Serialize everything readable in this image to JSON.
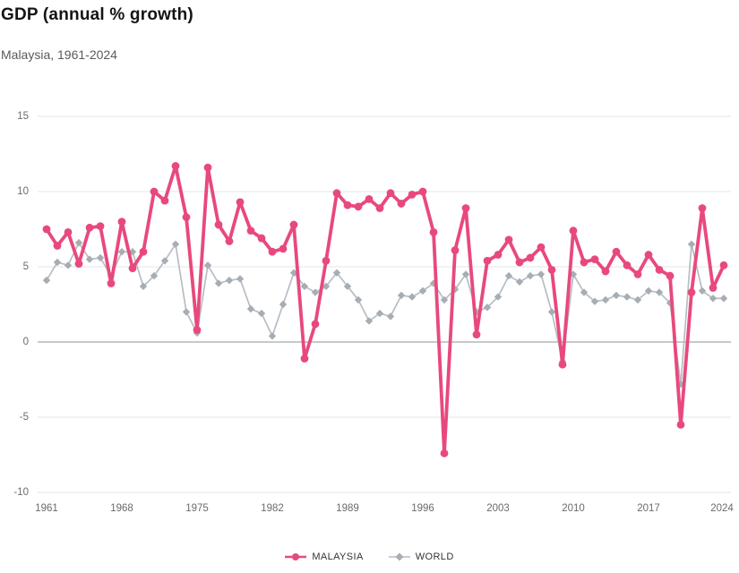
{
  "header": {
    "title": "GDP (annual % growth)",
    "subtitle": "Malaysia, 1961-2024"
  },
  "legend": [
    {
      "label": "MALAYSIA",
      "color": "#e8497d",
      "marker": "circle"
    },
    {
      "label": "WORLD",
      "color": "#a6adb5",
      "marker": "diamond"
    }
  ],
  "colors": {
    "malaysia_line": "#e8497d",
    "world_line": "#b7bdc4",
    "world_marker": "#a6adb5",
    "gridline": "#e3e5e8",
    "zero_line": "#8a939b",
    "axis_label": "#6b6b6b",
    "title_text": "#141414",
    "subtitle_text": "#5a5a5a",
    "background": "#ffffff"
  },
  "chart_data": {
    "type": "line",
    "title": "GDP (annual % growth)",
    "subtitle": "Malaysia, 1961-2024",
    "xlabel": "",
    "ylabel": "",
    "ylim": [
      -10,
      15
    ],
    "yticks": [
      15,
      10,
      5,
      0,
      -5,
      -10
    ],
    "xticks": [
      1961,
      1968,
      1975,
      1982,
      1989,
      1996,
      2003,
      2010,
      2017,
      2024
    ],
    "grid": true,
    "legend_position": "bottom",
    "x": [
      1961,
      1962,
      1963,
      1964,
      1965,
      1966,
      1967,
      1968,
      1969,
      1970,
      1971,
      1972,
      1973,
      1974,
      1975,
      1976,
      1977,
      1978,
      1979,
      1980,
      1981,
      1982,
      1983,
      1984,
      1985,
      1986,
      1987,
      1988,
      1989,
      1990,
      1991,
      1992,
      1993,
      1994,
      1995,
      1996,
      1997,
      1998,
      1999,
      2000,
      2001,
      2002,
      2003,
      2004,
      2005,
      2006,
      2007,
      2008,
      2009,
      2010,
      2011,
      2012,
      2013,
      2014,
      2015,
      2016,
      2017,
      2018,
      2019,
      2020,
      2021,
      2022,
      2023,
      2024
    ],
    "series": [
      {
        "name": "MALAYSIA",
        "color": "#e8497d",
        "marker": "circle",
        "values": [
          7.5,
          6.4,
          7.3,
          5.2,
          7.6,
          7.7,
          3.9,
          8.0,
          4.9,
          6.0,
          10.0,
          9.4,
          11.7,
          8.3,
          0.8,
          11.6,
          7.8,
          6.7,
          9.3,
          7.4,
          6.9,
          6.0,
          6.2,
          7.8,
          -1.1,
          1.2,
          5.4,
          9.9,
          9.1,
          9.0,
          9.5,
          8.9,
          9.9,
          9.2,
          9.8,
          10.0,
          7.3,
          -7.4,
          6.1,
          8.9,
          0.5,
          5.4,
          5.8,
          6.8,
          5.3,
          5.6,
          6.3,
          4.8,
          -1.5,
          7.4,
          5.3,
          5.5,
          4.7,
          6.0,
          5.1,
          4.5,
          5.8,
          4.8,
          4.4,
          -5.5,
          3.3,
          8.9,
          3.6,
          5.1
        ]
      },
      {
        "name": "WORLD",
        "color": "#a6adb5",
        "marker": "diamond",
        "values": [
          4.1,
          5.3,
          5.1,
          6.6,
          5.5,
          5.6,
          4.4,
          6.0,
          6.0,
          3.7,
          4.4,
          5.4,
          6.5,
          2.0,
          0.6,
          5.1,
          3.9,
          4.1,
          4.2,
          2.2,
          1.9,
          0.4,
          2.5,
          4.6,
          3.7,
          3.3,
          3.7,
          4.6,
          3.7,
          2.8,
          1.4,
          1.9,
          1.7,
          3.1,
          3.0,
          3.4,
          3.9,
          2.8,
          3.5,
          4.5,
          2.0,
          2.3,
          3.0,
          4.4,
          4.0,
          4.4,
          4.5,
          2.0,
          -1.3,
          4.5,
          3.3,
          2.7,
          2.8,
          3.1,
          3.0,
          2.8,
          3.4,
          3.3,
          2.6,
          -2.8,
          6.5,
          3.4,
          2.9,
          2.9
        ]
      }
    ]
  }
}
